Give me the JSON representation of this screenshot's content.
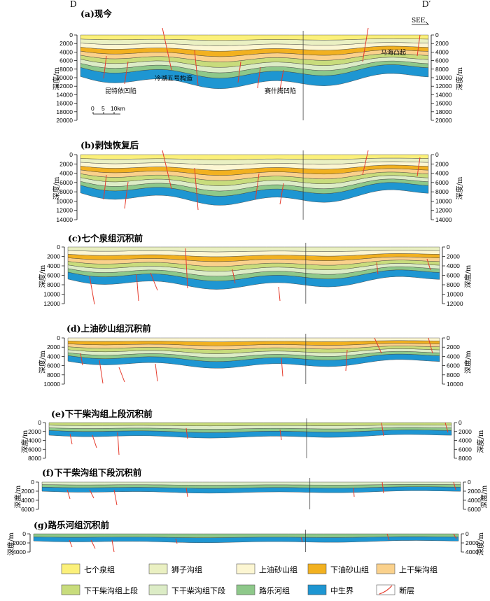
{
  "figure": {
    "start_label": "D",
    "end_label": "D′",
    "direction_label": "SEE",
    "depth_axis_label": "深度/m"
  },
  "panels": [
    {
      "id": "a",
      "title": "(a)现今",
      "depth_max": 20000,
      "ticks": [
        0,
        2000,
        4000,
        6000,
        8000,
        10000,
        12000,
        14000,
        16000,
        18000,
        20000
      ]
    },
    {
      "id": "b",
      "title": "(b)剥蚀恢复后",
      "depth_max": 14000,
      "ticks": [
        0,
        2000,
        4000,
        6000,
        8000,
        10000,
        12000,
        14000
      ]
    },
    {
      "id": "c",
      "title": "(c)七个泉组沉积前",
      "depth_max": 12000,
      "ticks": [
        0,
        2000,
        4000,
        6000,
        8000,
        10000,
        12000
      ]
    },
    {
      "id": "d",
      "title": "(d)上油砂山组沉积前",
      "depth_max": 10000,
      "ticks": [
        0,
        2000,
        4000,
        6000,
        8000,
        10000
      ]
    },
    {
      "id": "e",
      "title": "(e)下干柴沟组上段沉积前",
      "depth_max": 8000,
      "ticks": [
        0,
        2000,
        4000,
        6000,
        8000
      ]
    },
    {
      "id": "f",
      "title": "(f)下干柴沟组下段沉积前",
      "depth_max": 6000,
      "ticks": [
        0,
        2000,
        4000,
        6000
      ]
    },
    {
      "id": "g",
      "title": "(g)路乐河组沉积前",
      "depth_max": 4000,
      "ticks": [
        0,
        2000,
        4000
      ]
    }
  ],
  "annotations": {
    "kunteyi": "昆特依凹陷",
    "lenghu": "冷湖五号构造",
    "saishiteng": "赛什腾凹陷",
    "mahai": "马海凸起",
    "scale_values": [
      "0",
      "5",
      "10km"
    ]
  },
  "legend": [
    {
      "label": "七个泉组",
      "color": "#fbf07a"
    },
    {
      "label": "狮子沟组",
      "color": "#eaf0c2"
    },
    {
      "label": "上油砂山组",
      "color": "#fcf6d2"
    },
    {
      "label": "下油砂山组",
      "color": "#f2b120"
    },
    {
      "label": "上干柴沟组",
      "color": "#fad18c"
    },
    {
      "label": "下干柴沟组上段",
      "color": "#c8dc7c"
    },
    {
      "label": "下干柴沟组下段",
      "color": "#dcecc6"
    },
    {
      "label": "路乐河组",
      "color": "#8ec88a"
    },
    {
      "label": "中生界",
      "color": "#1e96d2"
    },
    {
      "label": "断层",
      "color": "#e53b2c"
    }
  ]
}
